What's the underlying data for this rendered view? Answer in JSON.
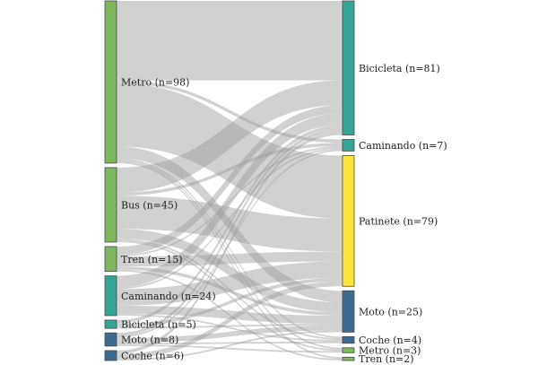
{
  "sources": [
    {
      "id": "s-metro",
      "label": "Metro (n=98)",
      "value": 98,
      "color": "#7db75e"
    },
    {
      "id": "s-bus",
      "label": "Bus (n=45)",
      "value": 45,
      "color": "#7db75e"
    },
    {
      "id": "s-tren",
      "label": "Tren (n=15)",
      "value": 15,
      "color": "#7db75e"
    },
    {
      "id": "s-caminando",
      "label": "Caminando (n=24)",
      "value": 24,
      "color": "#35a495"
    },
    {
      "id": "s-bicicleta",
      "label": "Bicicleta (n=5)",
      "value": 5,
      "color": "#35a495"
    },
    {
      "id": "s-moto",
      "label": "Moto (n=8)",
      "value": 8,
      "color": "#3d6a91"
    },
    {
      "id": "s-coche",
      "label": "Coche (n=6)",
      "value": 6,
      "color": "#3d6a91"
    }
  ],
  "targets": [
    {
      "id": "t-bicicleta",
      "label": "Bicicleta (n=81)",
      "value": 81,
      "color": "#35a495"
    },
    {
      "id": "t-caminando",
      "label": "Caminando (n=7)",
      "value": 7,
      "color": "#35a495"
    },
    {
      "id": "t-patinete",
      "label": "Patinete (n=79)",
      "value": 79,
      "color": "#fde63a"
    },
    {
      "id": "t-moto",
      "label": "Moto (n=25)",
      "value": 25,
      "color": "#3d6a91"
    },
    {
      "id": "t-coche",
      "label": "Coche (n=4)",
      "value": 4,
      "color": "#3d6a91"
    },
    {
      "id": "t-metro",
      "label": "Metro (n=3)",
      "value": 3,
      "color": "#7db75e"
    },
    {
      "id": "t-tren",
      "label": "Tren (n=2)",
      "value": 2,
      "color": "#7db75e"
    }
  ],
  "links": [
    {
      "source": "s-metro",
      "target": "t-bicicleta",
      "value": 48
    },
    {
      "source": "s-metro",
      "target": "t-caminando",
      "value": 2
    },
    {
      "source": "s-metro",
      "target": "t-patinete",
      "value": 38
    },
    {
      "source": "s-metro",
      "target": "t-moto",
      "value": 7
    },
    {
      "source": "s-metro",
      "target": "t-coche",
      "value": 1
    },
    {
      "source": "s-metro",
      "target": "t-metro",
      "value": 1
    },
    {
      "source": "s-metro",
      "target": "t-tren",
      "value": 1
    },
    {
      "source": "s-bus",
      "target": "t-bicicleta",
      "value": 15
    },
    {
      "source": "s-bus",
      "target": "t-caminando",
      "value": 2
    },
    {
      "source": "s-bus",
      "target": "t-patinete",
      "value": 20
    },
    {
      "source": "s-bus",
      "target": "t-moto",
      "value": 6
    },
    {
      "source": "s-bus",
      "target": "t-coche",
      "value": 1
    },
    {
      "source": "s-bus",
      "target": "t-metro",
      "value": 1
    },
    {
      "source": "s-tren",
      "target": "t-bicicleta",
      "value": 5
    },
    {
      "source": "s-tren",
      "target": "t-caminando",
      "value": 1
    },
    {
      "source": "s-tren",
      "target": "t-patinete",
      "value": 6
    },
    {
      "source": "s-tren",
      "target": "t-moto",
      "value": 2
    },
    {
      "source": "s-tren",
      "target": "t-tren",
      "value": 1
    },
    {
      "source": "s-caminando",
      "target": "t-bicicleta",
      "value": 7
    },
    {
      "source": "s-caminando",
      "target": "t-caminando",
      "value": 1
    },
    {
      "source": "s-caminando",
      "target": "t-patinete",
      "value": 10
    },
    {
      "source": "s-caminando",
      "target": "t-moto",
      "value": 5
    },
    {
      "source": "s-caminando",
      "target": "t-coche",
      "value": 1
    },
    {
      "source": "s-bicicleta",
      "target": "t-bicicleta",
      "value": 2
    },
    {
      "source": "s-bicicleta",
      "target": "t-patinete",
      "value": 2
    },
    {
      "source": "s-bicicleta",
      "target": "t-moto",
      "value": 1
    },
    {
      "source": "s-moto",
      "target": "t-bicicleta",
      "value": 2
    },
    {
      "source": "s-moto",
      "target": "t-caminando",
      "value": 1
    },
    {
      "source": "s-moto",
      "target": "t-moto",
      "value": 3
    },
    {
      "source": "s-moto",
      "target": "t-coche",
      "value": 1
    },
    {
      "source": "s-moto",
      "target": "t-metro",
      "value": 1
    },
    {
      "source": "s-coche",
      "target": "t-bicicleta",
      "value": 2
    },
    {
      "source": "s-coche",
      "target": "t-patinete",
      "value": 3
    },
    {
      "source": "s-coche",
      "target": "t-moto",
      "value": 1
    }
  ],
  "colors": {
    "link": "#9a9a9a",
    "node_stroke": "#4a4a4a"
  }
}
